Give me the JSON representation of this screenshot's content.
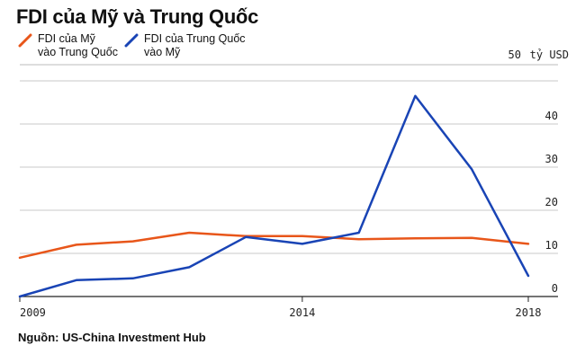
{
  "title": "FDI của Mỹ và Trung Quốc",
  "source": "Nguồn: US-China Investment Hub",
  "chart_data": {
    "type": "line",
    "unit_label": "tỷ USD",
    "x": [
      2009,
      2010,
      2011,
      2012,
      2013,
      2014,
      2015,
      2016,
      2017,
      2018
    ],
    "xticks": [
      "2009",
      "2014",
      "2018"
    ],
    "yticks": [
      0,
      10,
      20,
      30,
      40,
      50
    ],
    "ylim": [
      0,
      50
    ],
    "grid": true,
    "legend_position": "top-left",
    "series": [
      {
        "name": "FDI của Mỹ\nvào Trung Quốc",
        "color": "#e8561a",
        "values": [
          9.0,
          12.0,
          12.8,
          14.8,
          14.0,
          14.0,
          13.3,
          13.5,
          13.6,
          12.2
        ]
      },
      {
        "name": "FDI của Trung Quốc\nvào Mỹ",
        "color": "#1944b5",
        "values": [
          0.0,
          3.8,
          4.2,
          6.8,
          13.8,
          12.2,
          14.8,
          46.5,
          29.5,
          4.8
        ]
      }
    ]
  }
}
